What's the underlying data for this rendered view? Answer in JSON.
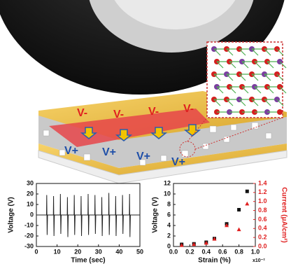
{
  "illustration": {
    "labels_top": [
      "V-",
      "V-",
      "V-",
      "V-"
    ],
    "labels_bottom": [
      "V+",
      "V+",
      "V+",
      "V+"
    ]
  },
  "chart_data": [
    {
      "type": "line",
      "xlabel": "Time (sec)",
      "ylabel": "Voltage (V)",
      "color": "#222222",
      "x": [
        0,
        4.9,
        5,
        5.2,
        5.4,
        8.2,
        8.3,
        8.5,
        8.7,
        11.5,
        11.6,
        11.8,
        12,
        14.9,
        15,
        15.2,
        15.4,
        18.2,
        18.3,
        18.5,
        18.7,
        21.5,
        21.6,
        21.8,
        22,
        24.9,
        25,
        25.2,
        25.4,
        28.2,
        28.3,
        28.5,
        28.7,
        31.5,
        31.6,
        31.8,
        32,
        34.9,
        35,
        35.2,
        35.4,
        38.2,
        38.3,
        38.5,
        38.7,
        41.5,
        41.6,
        41.8,
        42,
        44.9,
        45,
        45.2,
        45.4,
        50
      ],
      "values": [
        0,
        0,
        19,
        -19,
        0,
        0,
        18,
        -20,
        0,
        0,
        20,
        -18,
        0,
        0,
        17,
        -21,
        0,
        0,
        19,
        -19,
        0,
        0,
        18,
        -20,
        0,
        0,
        20,
        -19,
        0,
        0,
        19,
        -18,
        0,
        0,
        17,
        -20,
        0,
        0,
        21,
        -19,
        0,
        0,
        18,
        -20,
        0,
        0,
        19,
        -18,
        0,
        0,
        20,
        -21,
        0,
        0
      ],
      "xlim": [
        0,
        50
      ],
      "xticks": [
        0,
        10,
        20,
        30,
        40,
        50
      ],
      "ylim": [
        -30,
        30
      ],
      "yticks": [
        -30,
        -20,
        -10,
        0,
        10,
        20,
        30
      ]
    },
    {
      "type": "scatter",
      "xlabel": "Strain (%)",
      "x_multiplier": "x10⁻²",
      "ylabel": "Voltage (V)",
      "y2label": "Current (μA/cm²)",
      "y2color": "#e02020",
      "x": [
        0.1,
        0.25,
        0.4,
        0.5,
        0.65,
        0.8,
        0.9
      ],
      "series": [
        {
          "color": "#111111",
          "marker": "square",
          "values": [
            0.4,
            0.5,
            0.8,
            1.5,
            4.3,
            7.0,
            10.5
          ]
        },
        {
          "color": "#e02020",
          "marker": "triangle",
          "axis": "y2",
          "values": [
            0.03,
            0.05,
            0.08,
            0.17,
            0.47,
            0.38,
            0.95
          ]
        }
      ],
      "xlim": [
        0,
        1
      ],
      "xticks": [
        {
          "value": 0,
          "label": "0.0"
        },
        0.2,
        0.4,
        0.6,
        0.8,
        {
          "value": 1,
          "label": "1.0"
        }
      ],
      "ylim": [
        0,
        12
      ],
      "yticks": [
        0,
        2,
        4,
        6,
        8,
        10,
        12
      ],
      "y2lim": [
        0,
        1.4
      ],
      "y2ticks": [
        {
          "value": 0,
          "label": "0.0"
        },
        0.2,
        0.4,
        0.6,
        0.8,
        {
          "value": 1,
          "label": "1.0"
        },
        1.2,
        1.4
      ]
    }
  ]
}
